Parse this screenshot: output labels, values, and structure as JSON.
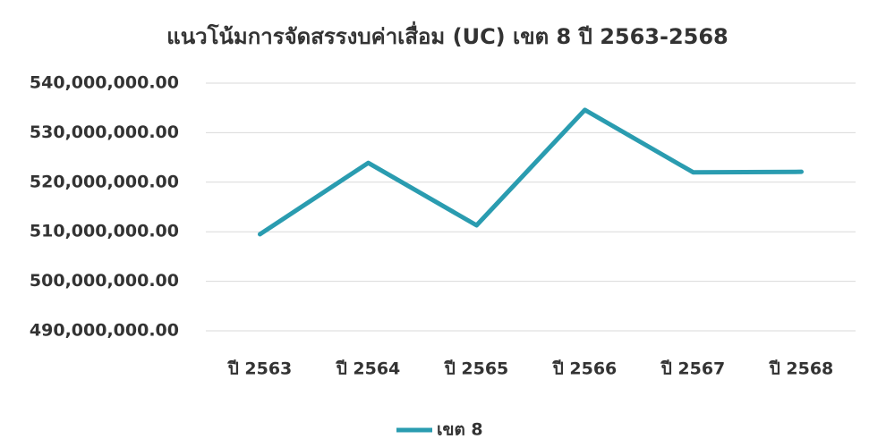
{
  "chart_data": {
    "type": "line",
    "title": "แนวโน้มการจัดสรรงบค่าเสื่อม (UC) เขต 8 ปี 2563-2568",
    "categories": [
      "ปี 2563",
      "ปี 2564",
      "ปี 2565",
      "ปี 2566",
      "ปี 2567",
      "ปี 2568"
    ],
    "series": [
      {
        "name": "เขต 8",
        "color": "#2a9cb0",
        "values": [
          509500000,
          523900000,
          511300000,
          534600000,
          522000000,
          522100000
        ]
      }
    ],
    "ylim": [
      490000000,
      540000000
    ],
    "yticks": [
      {
        "value": 490000000,
        "label": "490,000,000.00"
      },
      {
        "value": 500000000,
        "label": "500,000,000.00"
      },
      {
        "value": 510000000,
        "label": "510,000,000.00"
      },
      {
        "value": 520000000,
        "label": "520,000,000.00"
      },
      {
        "value": 530000000,
        "label": "530,000,000.00"
      },
      {
        "value": 540000000,
        "label": "540,000,000.00"
      }
    ],
    "grid": true,
    "legend": "bottom"
  }
}
